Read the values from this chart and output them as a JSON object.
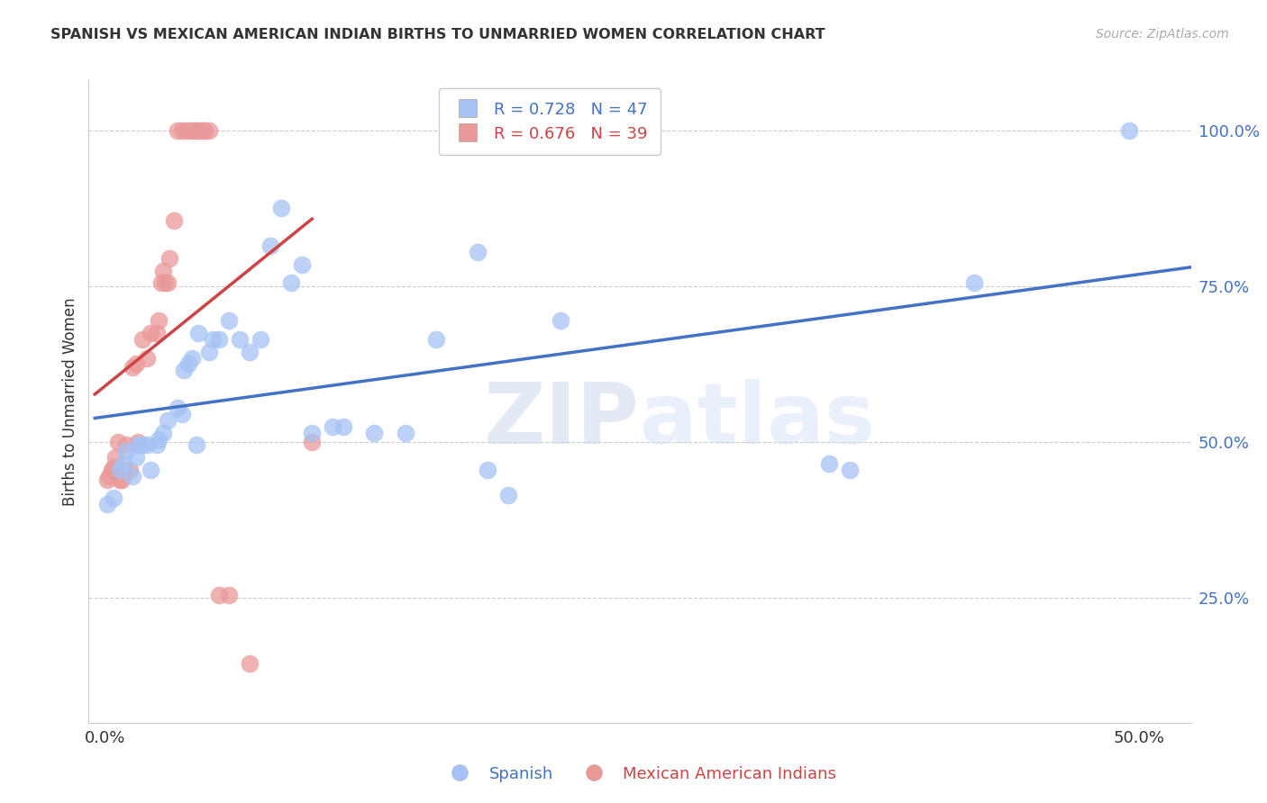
{
  "title": "SPANISH VS MEXICAN AMERICAN INDIAN BIRTHS TO UNMARRIED WOMEN CORRELATION CHART",
  "source": "Source: ZipAtlas.com",
  "ylabel": "Births to Unmarried Women",
  "y_ticks_right": [
    0.25,
    0.5,
    0.75,
    1.0
  ],
  "y_tick_labels_right": [
    "25.0%",
    "50.0%",
    "75.0%",
    "100.0%"
  ],
  "xlim": [
    -0.008,
    0.525
  ],
  "ylim": [
    0.05,
    1.08
  ],
  "blue_R": 0.728,
  "blue_N": 47,
  "pink_R": 0.676,
  "pink_N": 39,
  "legend_label_blue": "Spanish",
  "legend_label_pink": "Mexican American Indians",
  "watermark_zip": "ZIP",
  "watermark_atlas": "atlas",
  "blue_color": "#a4c2f4",
  "pink_color": "#ea9999",
  "blue_line_color": "#4472c4",
  "pink_line_color": "#cc4444",
  "blue_scatter": [
    [
      0.001,
      0.4
    ],
    [
      0.004,
      0.41
    ],
    [
      0.007,
      0.455
    ],
    [
      0.009,
      0.465
    ],
    [
      0.01,
      0.485
    ],
    [
      0.013,
      0.445
    ],
    [
      0.015,
      0.475
    ],
    [
      0.016,
      0.495
    ],
    [
      0.018,
      0.495
    ],
    [
      0.02,
      0.495
    ],
    [
      0.022,
      0.455
    ],
    [
      0.025,
      0.495
    ],
    [
      0.026,
      0.505
    ],
    [
      0.028,
      0.515
    ],
    [
      0.03,
      0.535
    ],
    [
      0.035,
      0.555
    ],
    [
      0.037,
      0.545
    ],
    [
      0.038,
      0.615
    ],
    [
      0.04,
      0.625
    ],
    [
      0.042,
      0.635
    ],
    [
      0.044,
      0.495
    ],
    [
      0.045,
      0.675
    ],
    [
      0.05,
      0.645
    ],
    [
      0.052,
      0.665
    ],
    [
      0.055,
      0.665
    ],
    [
      0.06,
      0.695
    ],
    [
      0.065,
      0.665
    ],
    [
      0.07,
      0.645
    ],
    [
      0.075,
      0.665
    ],
    [
      0.08,
      0.815
    ],
    [
      0.085,
      0.875
    ],
    [
      0.09,
      0.755
    ],
    [
      0.095,
      0.785
    ],
    [
      0.1,
      0.515
    ],
    [
      0.11,
      0.525
    ],
    [
      0.115,
      0.525
    ],
    [
      0.13,
      0.515
    ],
    [
      0.145,
      0.515
    ],
    [
      0.16,
      0.665
    ],
    [
      0.18,
      0.805
    ],
    [
      0.185,
      0.455
    ],
    [
      0.195,
      0.415
    ],
    [
      0.22,
      0.695
    ],
    [
      0.35,
      0.465
    ],
    [
      0.36,
      0.455
    ],
    [
      0.42,
      0.755
    ],
    [
      0.495,
      1.0
    ]
  ],
  "pink_scatter": [
    [
      0.001,
      0.44
    ],
    [
      0.002,
      0.445
    ],
    [
      0.003,
      0.455
    ],
    [
      0.004,
      0.46
    ],
    [
      0.005,
      0.475
    ],
    [
      0.006,
      0.5
    ],
    [
      0.007,
      0.44
    ],
    [
      0.008,
      0.44
    ],
    [
      0.009,
      0.455
    ],
    [
      0.01,
      0.495
    ],
    [
      0.012,
      0.455
    ],
    [
      0.013,
      0.62
    ],
    [
      0.015,
      0.625
    ],
    [
      0.016,
      0.5
    ],
    [
      0.018,
      0.665
    ],
    [
      0.02,
      0.635
    ],
    [
      0.022,
      0.675
    ],
    [
      0.025,
      0.675
    ],
    [
      0.026,
      0.695
    ],
    [
      0.027,
      0.755
    ],
    [
      0.028,
      0.775
    ],
    [
      0.029,
      0.755
    ],
    [
      0.03,
      0.755
    ],
    [
      0.031,
      0.795
    ],
    [
      0.033,
      0.855
    ],
    [
      0.035,
      1.0
    ],
    [
      0.037,
      1.0
    ],
    [
      0.039,
      1.0
    ],
    [
      0.041,
      1.0
    ],
    [
      0.043,
      1.0
    ],
    [
      0.044,
      1.0
    ],
    [
      0.045,
      1.0
    ],
    [
      0.047,
      1.0
    ],
    [
      0.048,
      1.0
    ],
    [
      0.05,
      1.0
    ],
    [
      0.055,
      0.255
    ],
    [
      0.06,
      0.255
    ],
    [
      0.07,
      0.145
    ],
    [
      0.1,
      0.5
    ]
  ],
  "grid_color": "#cccccc",
  "background_color": "#ffffff",
  "title_color": "#333333",
  "right_tick_color": "#4472c4"
}
